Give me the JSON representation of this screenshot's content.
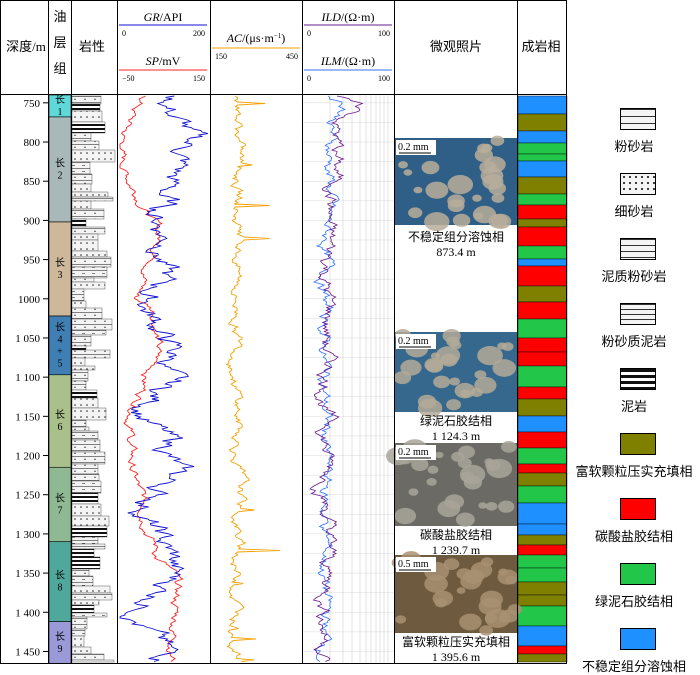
{
  "headers": {
    "depth": "深度/m",
    "layer": "油层组",
    "lithology": "岩性",
    "gr": {
      "name": "GR",
      "unit": "/API",
      "min": "0",
      "max": "200"
    },
    "sp": {
      "name": "SP",
      "unit": "/mV",
      "min": "−50",
      "max": "150"
    },
    "ac": {
      "name": "AC",
      "unit": "/(μs·m",
      "sup": "−1",
      "close": ")",
      "min": "150",
      "max": "450"
    },
    "ild": {
      "name": "ILD",
      "unit": "/(Ω·m)",
      "min": "0",
      "max": "100"
    },
    "ilm": {
      "name": "ILM",
      "unit": "/(Ω·m)",
      "min": "0",
      "max": "100"
    },
    "photos": "微观照片",
    "facies": "成岩相"
  },
  "depth_ticks": [
    "750",
    "800",
    "850",
    "900",
    "950",
    "1000",
    "1 050",
    "1 100",
    "1 150",
    "1 200",
    "1 250",
    "1 300",
    "1 350",
    "1 400",
    "1 450"
  ],
  "layers": [
    {
      "label": "长1",
      "from": 740,
      "to": 768,
      "color": "#5ed8d8"
    },
    {
      "label": "长2",
      "from": 768,
      "to": 902,
      "color": "#a9b8b8"
    },
    {
      "label": "长3",
      "from": 902,
      "to": 1022,
      "color": "#cdb89c"
    },
    {
      "label": "长4+5",
      "from": 1022,
      "to": 1097,
      "color": "#3f7fb3"
    },
    {
      "label": "长6",
      "from": 1097,
      "to": 1215,
      "color": "#a9c08a"
    },
    {
      "label": "长7",
      "from": 1215,
      "to": 1310,
      "color": "#8fb993"
    },
    {
      "label": "长8",
      "from": 1310,
      "to": 1412,
      "color": "#4fa89c"
    },
    {
      "label": "长9",
      "from": 1412,
      "to": 1466,
      "color": "#9a9ad8"
    }
  ],
  "photos": [
    {
      "scale": "0.2 mm",
      "caption": "不稳定组分溶蚀相",
      "depth": "873.4 m"
    },
    {
      "scale": "0.2 mm",
      "caption": "绿泥石胶结相",
      "depth": "1 124.3 m"
    },
    {
      "scale": "0.2 mm",
      "caption": "碳酸盐胶结相",
      "depth": "1 239.7 m"
    },
    {
      "scale": "0.5 mm",
      "caption": "富软颗粒压实充填相",
      "depth": "1 395.6 m"
    }
  ],
  "legend": [
    {
      "label": "粉砂岩",
      "pattern": "siltstone"
    },
    {
      "label": "细砂岩",
      "pattern": "fine-sandstone"
    },
    {
      "label": "泥质粉砂岩",
      "pattern": "muddy-siltstone"
    },
    {
      "label": "粉砂质泥岩",
      "pattern": "silty-mudstone"
    },
    {
      "label": "泥岩",
      "pattern": "mudstone"
    },
    {
      "label": "富软颗粒压实充填相",
      "pattern": "fill",
      "color": "#7f7f00"
    },
    {
      "label": "碳酸盐胶结相",
      "pattern": "fill",
      "color": "#ff0000"
    },
    {
      "label": "绿泥石胶结相",
      "pattern": "fill",
      "color": "#22c74a"
    },
    {
      "label": "不稳定组分溶蚀相",
      "pattern": "fill",
      "color": "#1e90ff"
    }
  ],
  "colors": {
    "gr": "#1010d0",
    "sp": "#ff2020",
    "ac": "#f5a000",
    "ild": "#6a1a8c",
    "ilm": "#3070ff"
  }
}
